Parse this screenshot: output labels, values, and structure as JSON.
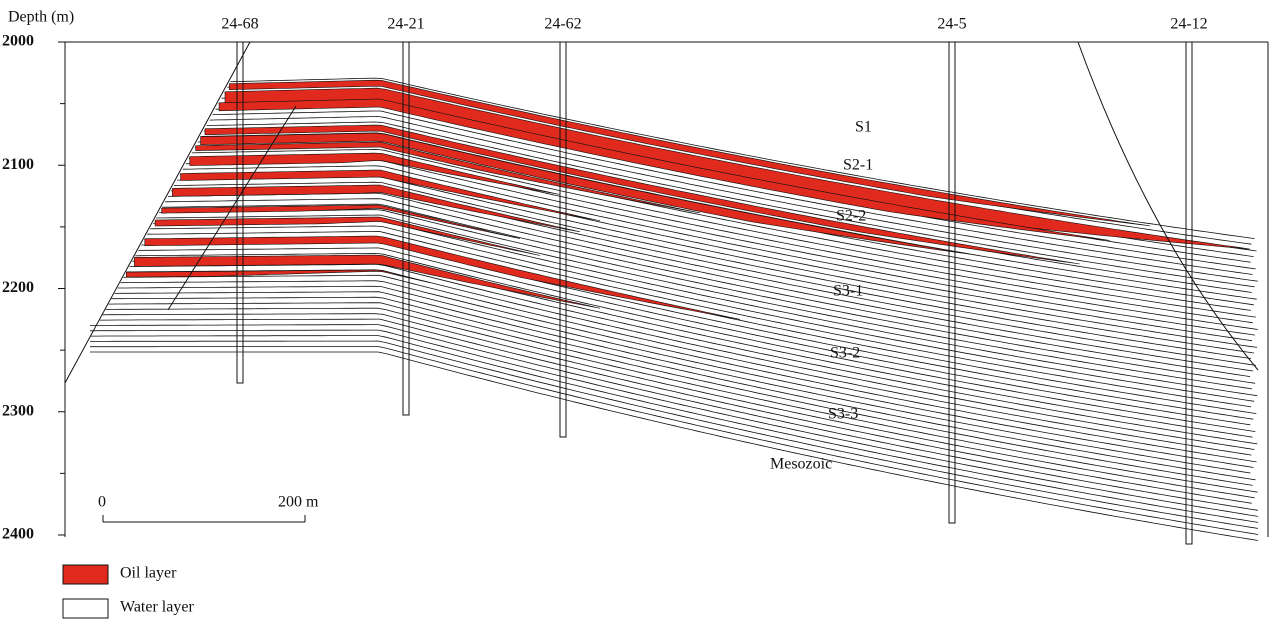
{
  "axis": {
    "label": "Depth (m)",
    "ticks": [
      2000,
      2100,
      2200,
      2300,
      2400
    ]
  },
  "wells": [
    "24-68",
    "24-21",
    "24-62",
    "24-5",
    "24-12"
  ],
  "layers": [
    "S1",
    "S2-1",
    "S2-2",
    "S3-1",
    "S3-2",
    "S3-3",
    "Mesozoic"
  ],
  "scale_bar": {
    "start": "0",
    "end": "200 m"
  },
  "legend": [
    "Oil layer",
    "Water layer"
  ]
}
